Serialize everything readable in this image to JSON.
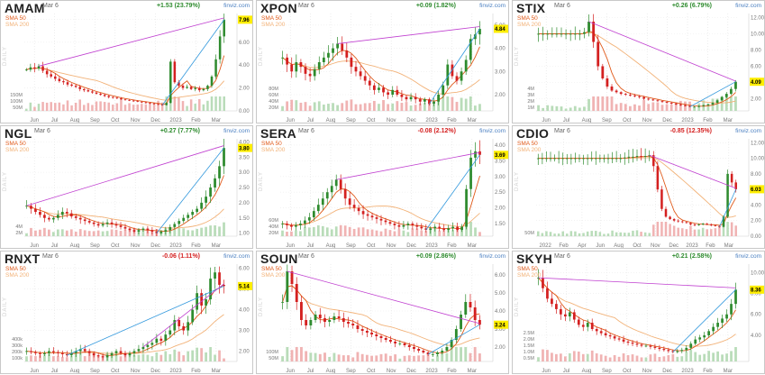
{
  "colors": {
    "up": "#2e8b2e",
    "down": "#d42020",
    "sma50": "#e05a1a",
    "sma200": "#f2b278",
    "trend_magenta": "#c040d0",
    "trend_blue": "#3399dd",
    "trend_slate": "#6a6aaa",
    "price_tag": "#ffee00",
    "brand": "#4a7fc1"
  },
  "legend": {
    "sma50": "SMA 50",
    "sma200": "SMA 200",
    "daily": "DAILY",
    "brand": "finviz.com"
  },
  "chart_data": [
    {
      "type": "candlestick",
      "ticker": "AMAM",
      "date": "Mar 6",
      "change": "+1.53 (23.79%)",
      "direction": "up",
      "last_price": "7.96",
      "y_ticks": [
        "8.00",
        "6.00",
        "4.00",
        "2.00",
        "0.00"
      ],
      "volume_ticks": [
        "150M",
        "100M",
        "50M"
      ],
      "x_ticks": [
        "Jun",
        "Jul",
        "Aug",
        "Sep",
        "Oct",
        "Nov",
        "Dec",
        "2023",
        "Feb",
        "Mar"
      ],
      "ylim": [
        0,
        8.5
      ],
      "close": [
        3.6,
        3.8,
        3.7,
        3.9,
        3.5,
        3.2,
        3.0,
        2.8,
        2.6,
        2.5,
        2.3,
        2.2,
        2.1,
        1.9,
        1.8,
        1.7,
        1.6,
        1.5,
        1.4,
        1.3,
        1.2,
        1.15,
        1.1,
        1.0,
        0.95,
        0.9,
        0.85,
        0.8,
        0.75,
        0.7,
        0.65,
        0.6,
        0.55,
        0.5,
        0.7,
        4.3,
        2.5,
        2.2,
        2.0,
        2.1,
        1.9,
        2.0,
        1.8,
        1.9,
        2.2,
        3.0,
        4.5,
        6.5,
        7.96
      ]
    },
    {
      "type": "candlestick",
      "ticker": "XPON",
      "date": "Mar 6",
      "change": "+0.09 (1.82%)",
      "direction": "up",
      "last_price": "4.84",
      "y_ticks": [
        "5.00",
        "4.00",
        "3.00",
        "2.00"
      ],
      "volume_ticks": [
        "80M",
        "60M",
        "40M",
        "20M"
      ],
      "x_ticks": [
        "Jun",
        "Jul",
        "Aug",
        "Sep",
        "Oct",
        "Nov",
        "Dec",
        "2023",
        "Feb",
        "Mar"
      ],
      "ylim": [
        1.3,
        5.5
      ],
      "close": [
        3.6,
        3.3,
        3.0,
        3.4,
        3.2,
        2.9,
        2.8,
        3.1,
        3.4,
        3.6,
        3.8,
        4.0,
        4.2,
        3.9,
        3.6,
        3.2,
        3.0,
        2.8,
        2.6,
        2.4,
        2.2,
        2.3,
        2.1,
        2.0,
        2.2,
        2.0,
        1.9,
        1.8,
        1.9,
        1.8,
        1.7,
        1.8,
        1.6,
        1.7,
        2.0,
        2.4,
        3.3,
        2.8,
        2.6,
        3.0,
        3.5,
        4.4,
        4.6,
        4.84
      ]
    },
    {
      "type": "candlestick",
      "ticker": "STIX",
      "date": "Mar 6",
      "change": "+0.26 (6.79%)",
      "direction": "up",
      "last_price": "4.09",
      "y_ticks": [
        "12.00",
        "10.00",
        "8.00",
        "6.00",
        "4.00",
        "2.00"
      ],
      "volume_ticks": [
        "4M",
        "3M",
        "2M",
        "1M"
      ],
      "x_ticks": [
        "Jun",
        "Jul",
        "Aug",
        "Sep",
        "Oct",
        "Nov",
        "Dec",
        "2023",
        "Feb",
        "Mar"
      ],
      "ylim": [
        0.5,
        12.5
      ],
      "close": [
        10.0,
        10.0,
        10.0,
        10.0,
        10.0,
        10.0,
        10.0,
        10.0,
        10.0,
        10.0,
        10.2,
        11.5,
        9.0,
        6.0,
        4.5,
        3.5,
        3.0,
        2.8,
        2.6,
        2.5,
        2.4,
        2.3,
        2.2,
        2.0,
        1.9,
        1.8,
        1.7,
        1.6,
        1.5,
        1.4,
        1.3,
        1.2,
        1.1,
        1.0,
        1.0,
        1.1,
        1.2,
        1.3,
        1.5,
        1.8,
        2.2,
        2.6,
        3.2,
        4.09
      ]
    },
    {
      "type": "candlestick",
      "ticker": "NGL",
      "date": "Mar 6",
      "change": "+0.27 (7.77%)",
      "direction": "up",
      "last_price": "3.80",
      "y_ticks": [
        "4.00",
        "3.50",
        "3.00",
        "2.50",
        "2.00",
        "1.50",
        "1.00"
      ],
      "volume_ticks": [
        "4M",
        "2M"
      ],
      "x_ticks": [
        "Jun",
        "Jul",
        "Aug",
        "Sep",
        "Oct",
        "Nov",
        "Dec",
        "2023",
        "Feb",
        "Mar"
      ],
      "ylim": [
        0.9,
        4.1
      ],
      "close": [
        1.9,
        1.8,
        1.7,
        1.6,
        1.5,
        1.45,
        1.5,
        1.6,
        1.7,
        1.65,
        1.55,
        1.5,
        1.45,
        1.4,
        1.35,
        1.3,
        1.25,
        1.3,
        1.35,
        1.3,
        1.25,
        1.2,
        1.15,
        1.1,
        1.05,
        1.1,
        1.15,
        1.1,
        1.05,
        1.0,
        1.05,
        1.1,
        1.2,
        1.3,
        1.4,
        1.5,
        1.6,
        1.7,
        1.8,
        2.0,
        2.2,
        2.5,
        2.8,
        3.2,
        3.8
      ]
    },
    {
      "type": "candlestick",
      "ticker": "SERA",
      "date": "Mar 6",
      "change": "-0.08 (2.12%)",
      "direction": "down",
      "last_price": "3.69",
      "y_ticks": [
        "4.00",
        "3.50",
        "3.00",
        "2.50",
        "2.00",
        "1.50"
      ],
      "volume_ticks": [
        "60M",
        "40M",
        "20M"
      ],
      "x_ticks": [
        "Jun",
        "Jul",
        "Aug",
        "Sep",
        "Oct",
        "Nov",
        "Dec",
        "2023",
        "Feb",
        "Mar"
      ],
      "ylim": [
        1.1,
        4.2
      ],
      "close": [
        1.5,
        1.45,
        1.4,
        1.45,
        1.5,
        1.6,
        1.7,
        1.9,
        2.1,
        2.3,
        2.5,
        2.7,
        2.9,
        2.6,
        2.3,
        2.1,
        2.0,
        1.9,
        1.8,
        1.75,
        1.7,
        1.65,
        1.6,
        1.55,
        1.5,
        1.45,
        1.4,
        1.45,
        1.5,
        1.45,
        1.4,
        1.35,
        1.3,
        1.35,
        1.4,
        1.35,
        1.3,
        1.35,
        1.4,
        1.3,
        1.4,
        2.6,
        3.6,
        3.8,
        3.69
      ]
    },
    {
      "type": "candlestick",
      "ticker": "CDIO",
      "date": "Mar 6",
      "change": "-0.85 (12.35%)",
      "direction": "down",
      "last_price": "6.03",
      "y_ticks": [
        "12.00",
        "10.00",
        "8.00",
        "6.00",
        "4.00",
        "2.00",
        "0.00"
      ],
      "volume_ticks": [
        "50M"
      ],
      "x_ticks": [
        "2022",
        "Feb",
        "Apr",
        "Jun",
        "Aug",
        "Oct",
        "Nov",
        "Dec",
        "2023",
        "Feb",
        "Mar"
      ],
      "ylim": [
        0,
        12.5
      ],
      "close": [
        10.0,
        10.0,
        10.0,
        10.0,
        10.0,
        10.0,
        10.0,
        10.0,
        10.0,
        10.0,
        10.0,
        10.0,
        10.0,
        10.0,
        10.0,
        10.0,
        10.0,
        10.0,
        10.0,
        10.0,
        10.0,
        10.1,
        10.2,
        10.2,
        10.3,
        10.2,
        10.3,
        10.4,
        9.0,
        6.0,
        3.5,
        2.5,
        2.2,
        2.0,
        1.9,
        1.8,
        1.7,
        1.5,
        1.4,
        1.5,
        1.6,
        1.5,
        1.4,
        1.3,
        1.2,
        2.5,
        8.0,
        6.9,
        6.03
      ]
    },
    {
      "type": "candlestick",
      "ticker": "RNXT",
      "date": "Mar 6",
      "change": "-0.06 (1.11%)",
      "direction": "down",
      "last_price": "5.14",
      "y_ticks": [
        "6.00",
        "5.00",
        "4.00",
        "3.00",
        "2.00"
      ],
      "volume_ticks": [
        "400k",
        "300k",
        "200k",
        "100k"
      ],
      "x_ticks": [
        "Jun",
        "Jul",
        "Aug",
        "Sep",
        "Oct",
        "Nov",
        "Dec",
        "2023",
        "Feb",
        "Mar"
      ],
      "ylim": [
        1.5,
        6.2
      ],
      "close": [
        2.0,
        1.95,
        1.9,
        1.85,
        1.9,
        2.0,
        1.95,
        1.9,
        1.85,
        1.8,
        1.9,
        2.0,
        2.1,
        2.0,
        1.9,
        1.8,
        1.75,
        1.7,
        1.8,
        1.9,
        2.0,
        1.9,
        1.8,
        1.9,
        2.0,
        2.1,
        2.2,
        2.3,
        2.4,
        2.6,
        2.5,
        2.8,
        3.0,
        3.5,
        3.2,
        3.0,
        3.4,
        4.0,
        4.8,
        4.2,
        4.5,
        5.5,
        5.8,
        5.2,
        5.14
      ]
    },
    {
      "type": "candlestick",
      "ticker": "SOUN",
      "date": "Mar 6",
      "change": "+0.09 (2.86%)",
      "direction": "up",
      "last_price": "3.24",
      "y_ticks": [
        "6.00",
        "5.00",
        "4.00",
        "3.00",
        "2.00"
      ],
      "volume_ticks": [
        "100M",
        "50M"
      ],
      "x_ticks": [
        "Jun",
        "Jul",
        "Aug",
        "Sep",
        "Oct",
        "Nov",
        "Dec",
        "2023",
        "Feb",
        "Mar"
      ],
      "ylim": [
        1.2,
        6.6
      ],
      "close": [
        4.5,
        6.2,
        5.5,
        4.5,
        3.5,
        3.2,
        3.5,
        3.8,
        3.6,
        3.4,
        3.5,
        3.7,
        3.6,
        3.4,
        3.3,
        3.2,
        3.0,
        2.9,
        2.8,
        2.7,
        2.6,
        2.5,
        2.4,
        2.3,
        2.2,
        2.2,
        2.1,
        2.0,
        1.9,
        1.8,
        1.7,
        1.6,
        1.6,
        1.7,
        1.8,
        2.0,
        2.4,
        3.0,
        3.8,
        4.5,
        4.2,
        3.5,
        3.24
      ]
    },
    {
      "type": "candlestick",
      "ticker": "SKYH",
      "date": "Mar 6",
      "change": "+0.21 (2.58%)",
      "direction": "up",
      "last_price": "8.36",
      "y_ticks": [
        "10.00",
        "8.00",
        "6.00",
        "4.00"
      ],
      "volume_ticks": [
        "2.5M",
        "2.0M",
        "1.5M",
        "1.0M",
        "0.5M"
      ],
      "x_ticks": [
        "Jun",
        "Jul",
        "Aug",
        "Sep",
        "Oct",
        "Nov",
        "Dec",
        "2023",
        "Feb",
        "Mar"
      ],
      "ylim": [
        1.5,
        10.8
      ],
      "close": [
        9.5,
        8.5,
        7.5,
        7.0,
        6.5,
        6.0,
        5.8,
        6.2,
        5.5,
        5.0,
        4.8,
        5.2,
        4.6,
        4.4,
        4.2,
        4.0,
        3.9,
        3.7,
        3.6,
        3.4,
        3.3,
        3.2,
        3.1,
        3.0,
        3.0,
        2.9,
        2.8,
        2.7,
        2.6,
        2.5,
        2.4,
        2.5,
        2.6,
        2.8,
        3.2,
        3.6,
        3.8,
        4.0,
        4.4,
        4.8,
        5.2,
        5.6,
        6.0,
        7.0,
        8.36
      ]
    }
  ]
}
